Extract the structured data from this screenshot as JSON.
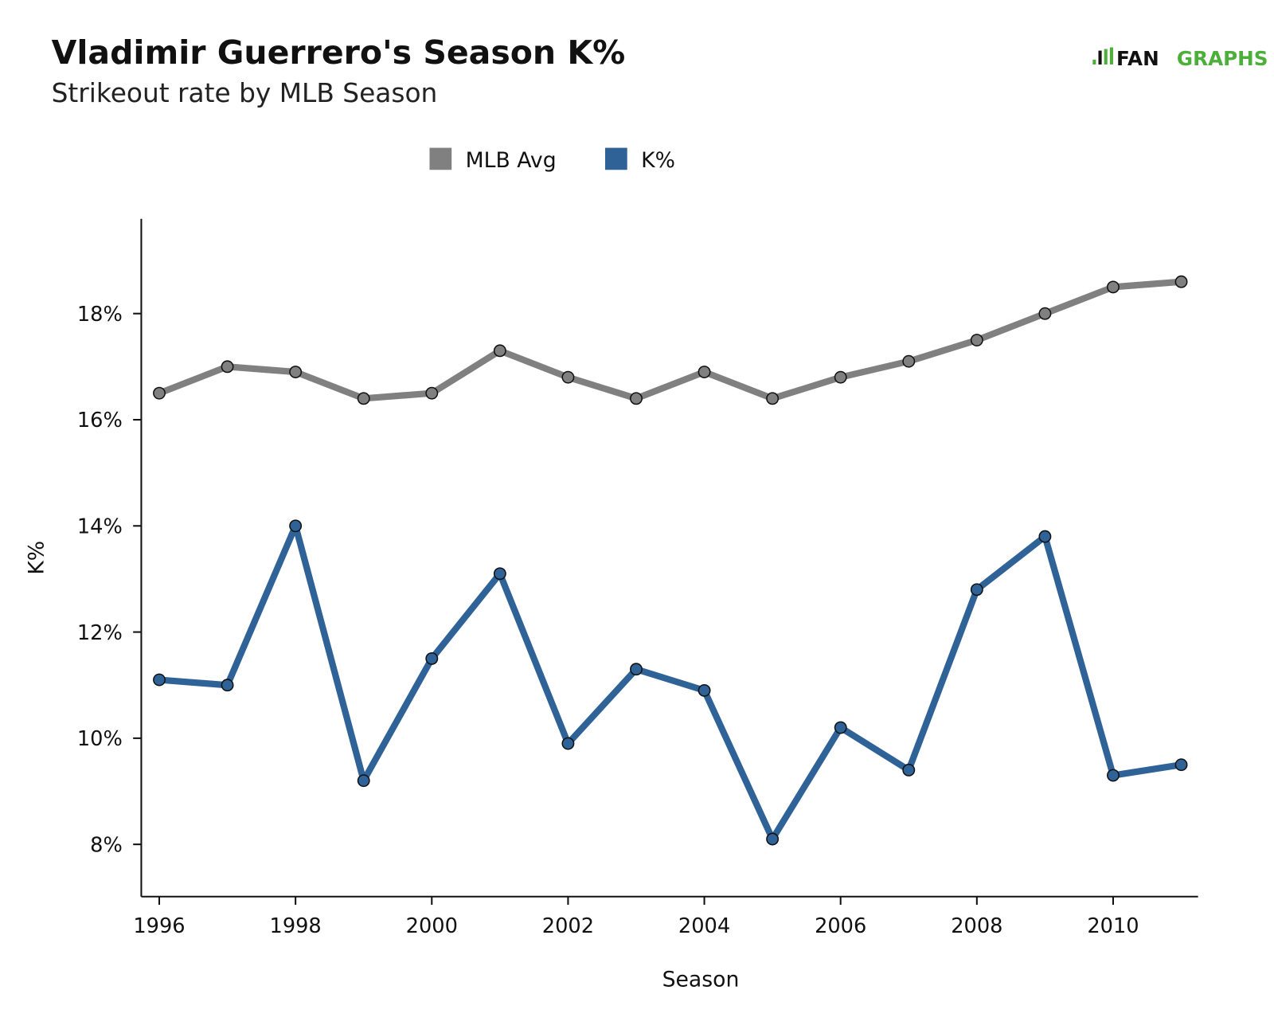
{
  "chart_data": {
    "type": "line",
    "title": "Vladimir Guerrero's Season K%",
    "subtitle": "Strikeout rate by MLB Season",
    "logo": {
      "left": "FAN",
      "right": "GRAPHS"
    },
    "xlabel": "Season",
    "ylabel": "K%",
    "x": [
      1996,
      1997,
      1998,
      1999,
      2000,
      2001,
      2002,
      2003,
      2004,
      2005,
      2006,
      2007,
      2008,
      2009,
      2010,
      2011
    ],
    "xticks": [
      "1996",
      "1998",
      "2000",
      "2002",
      "2004",
      "2006",
      "2008",
      "2010"
    ],
    "yticks": [
      "8%",
      "10%",
      "12%",
      "14%",
      "16%",
      "18%"
    ],
    "ylim": [
      7.0,
      19.8
    ],
    "legend_position": "top-center",
    "series": [
      {
        "name": "MLB Avg",
        "color": "#808080",
        "values": [
          16.5,
          17.0,
          16.9,
          16.4,
          16.5,
          17.3,
          16.8,
          16.4,
          16.9,
          16.4,
          16.8,
          17.1,
          17.5,
          18.0,
          18.5,
          18.6
        ]
      },
      {
        "name": "K%",
        "color": "#2f6398",
        "values": [
          11.1,
          11.0,
          14.0,
          9.2,
          11.5,
          13.1,
          9.9,
          11.3,
          10.9,
          8.1,
          10.2,
          9.4,
          12.8,
          13.8,
          9.3,
          9.5
        ]
      }
    ]
  }
}
